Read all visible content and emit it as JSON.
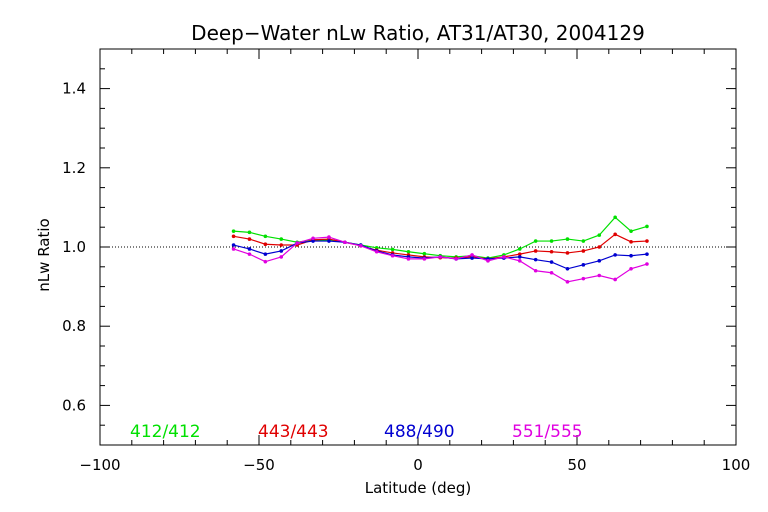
{
  "chart_data": {
    "type": "line",
    "title": "Deep−Water nLw Ratio, AT31/AT30, 2004129",
    "xlabel": "Latitude (deg)",
    "ylabel": "nLw Ratio",
    "xlim": [
      -100,
      100
    ],
    "ylim": [
      0.5,
      1.5
    ],
    "x_ticks": [
      -100,
      -50,
      0,
      50,
      100
    ],
    "x_tick_labels": [
      "−100",
      "−50",
      "0",
      "50",
      "100"
    ],
    "y_ticks": [
      0.6,
      0.8,
      1.0,
      1.2,
      1.4
    ],
    "y_tick_labels": [
      "0.6",
      "0.8",
      "1.0",
      "1.2",
      "1.4"
    ],
    "reference_line": {
      "y": 1.0,
      "style": "dotted"
    },
    "grid": false,
    "legend_placement": "bottom inside plot",
    "x": [
      -58,
      -53,
      -48,
      -43,
      -38,
      -33,
      -28,
      -23,
      -18,
      -13,
      -8,
      -3,
      2,
      7,
      12,
      17,
      22,
      27,
      32,
      37,
      42,
      47,
      52,
      57,
      62,
      67,
      72
    ],
    "series": [
      {
        "name": "412/412",
        "color": "#00e000",
        "values": [
          1.04,
          1.037,
          1.027,
          1.02,
          1.012,
          1.018,
          1.018,
          1.012,
          1.005,
          0.998,
          0.994,
          0.988,
          0.983,
          0.978,
          0.975,
          0.978,
          0.972,
          0.98,
          0.995,
          1.015,
          1.015,
          1.02,
          1.015,
          1.03,
          1.075,
          1.04,
          1.052
        ]
      },
      {
        "name": "443/443",
        "color": "#e00000",
        "values": [
          1.027,
          1.02,
          1.007,
          1.005,
          1.005,
          1.018,
          1.02,
          1.012,
          1.003,
          0.992,
          0.985,
          0.98,
          0.975,
          0.973,
          0.972,
          0.975,
          0.97,
          0.975,
          0.982,
          0.99,
          0.988,
          0.985,
          0.99,
          1.0,
          1.032,
          1.013,
          1.015
        ]
      },
      {
        "name": "488/490",
        "color": "#0000d0",
        "values": [
          1.005,
          0.995,
          0.982,
          0.99,
          1.01,
          1.015,
          1.015,
          1.012,
          1.005,
          0.99,
          0.98,
          0.975,
          0.972,
          0.975,
          0.97,
          0.972,
          0.97,
          0.972,
          0.975,
          0.968,
          0.962,
          0.945,
          0.955,
          0.965,
          0.98,
          0.978,
          0.982
        ]
      },
      {
        "name": "551/555",
        "color": "#e000e0",
        "values": [
          0.995,
          0.982,
          0.963,
          0.975,
          1.01,
          1.022,
          1.025,
          1.012,
          1.003,
          0.988,
          0.978,
          0.97,
          0.97,
          0.975,
          0.97,
          0.98,
          0.965,
          0.975,
          0.965,
          0.94,
          0.935,
          0.912,
          0.92,
          0.928,
          0.918,
          0.945,
          0.957
        ]
      }
    ]
  }
}
